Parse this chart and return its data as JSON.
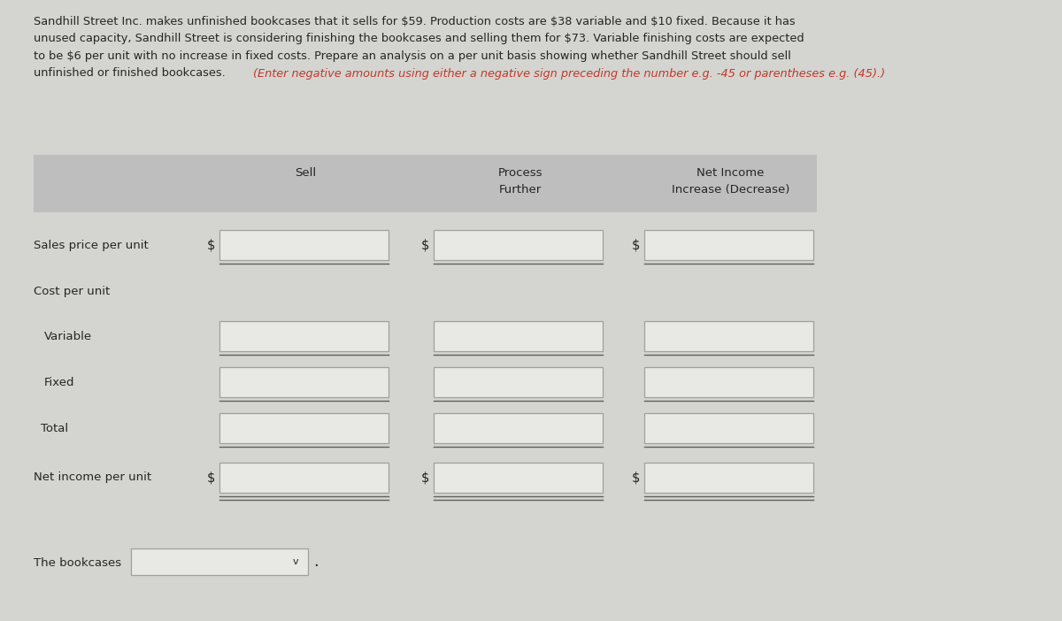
{
  "paragraph_lines": [
    "Sandhill Street Inc. makes unfinished bookcases that it sells for $59. Production costs are $38 variable and $10 fixed. Because it has",
    "unused capacity, Sandhill Street is considering finishing the bookcases and selling them for $73. Variable finishing costs are expected",
    "to be $6 per unit with no increase in fixed costs. Prepare an analysis on a per unit basis showing whether Sandhill Street should sell",
    "unfinished or finished bookcases. "
  ],
  "italic_text": "(Enter negative amounts using either a negative sign preceding the number e.g. -45 or parentheses e.g. (45).)",
  "header_bg": "#bebebe",
  "page_bg": "#d4d4d0",
  "box_border": "#a0a0a0",
  "col_headers_line1": [
    "",
    "Process",
    "Net Income"
  ],
  "col_headers_line2": [
    "Sell",
    "Further",
    "Increase (Decrease)"
  ],
  "row_labels": [
    "Sales price per unit",
    "Cost per unit",
    "Variable",
    "Fixed",
    "Total",
    "Net income per unit"
  ],
  "dollar_sign_rows": [
    0,
    5
  ],
  "bottom_label": "The bookcases",
  "text_color": "#252525",
  "red_color": "#c0392b",
  "line_color": "#606060"
}
